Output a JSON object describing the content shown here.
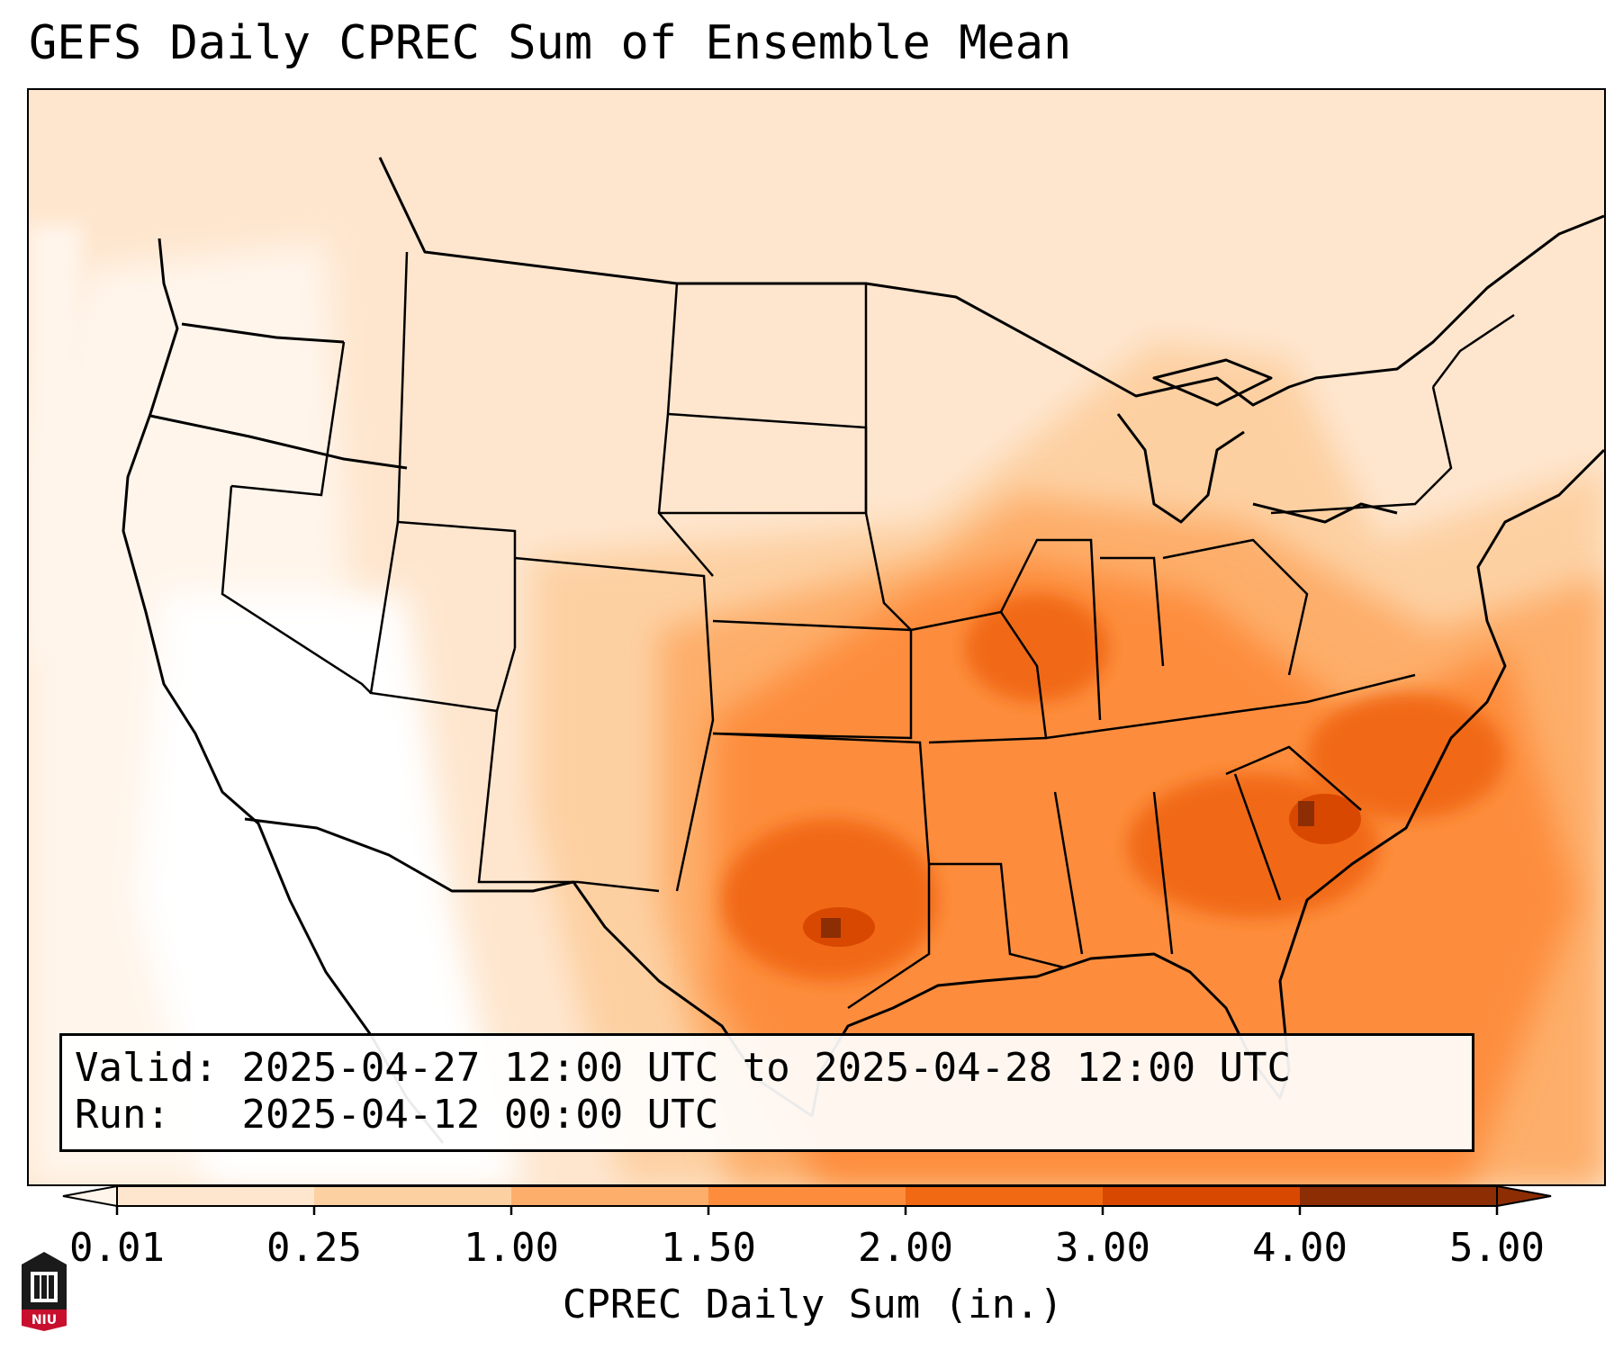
{
  "title": "GEFS Daily CPREC Sum of Ensemble Mean",
  "info": {
    "valid_label": "Valid:",
    "valid_value": "2025-04-27 12:00 UTC to 2025-04-28 12:00 UTC",
    "run_label": "Run:",
    "run_value": "2025-04-12 00:00 UTC"
  },
  "colorbar": {
    "label": "CPREC Daily Sum (in.)",
    "ticks": [
      "0.01",
      "0.25",
      "1.00",
      "1.50",
      "2.00",
      "3.00",
      "4.00",
      "5.00"
    ],
    "colors": [
      "#fff5eb",
      "#fee6ce",
      "#fdd0a2",
      "#fdae6b",
      "#fd8d3c",
      "#f16913",
      "#d94801",
      "#8c2d04"
    ],
    "extend": "both"
  },
  "map": {
    "projection": "lambert-conformal",
    "region": "Contiguous United States",
    "border_color": "#000000"
  },
  "logo": {
    "icon": "niu-logo-icon",
    "text": "NIU",
    "color": "#c8102e"
  }
}
